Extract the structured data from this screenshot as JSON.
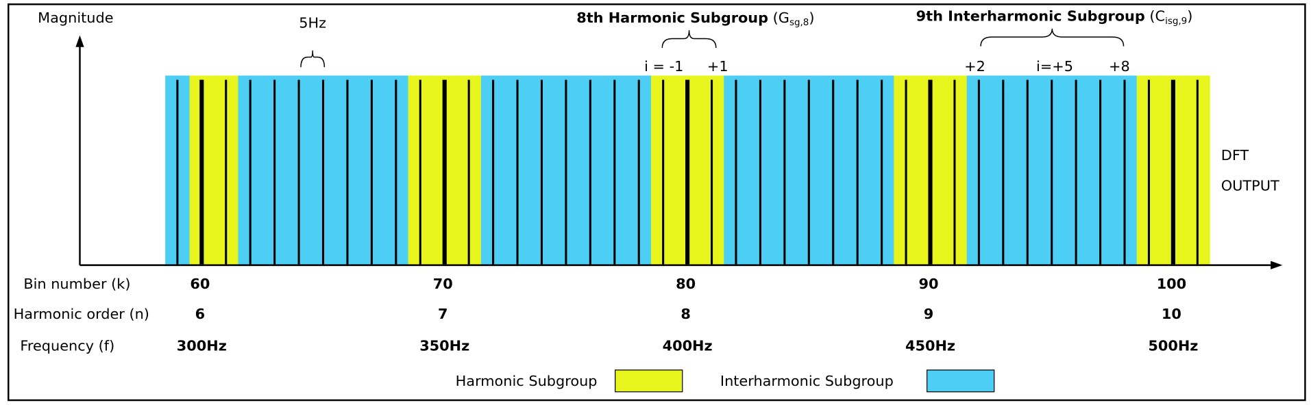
{
  "axis": {
    "y_label": "Magnitude",
    "row_labels": [
      "Bin number (k)",
      "Harmonic order (n)",
      "Frequency (f)"
    ]
  },
  "columns": [
    {
      "bin": "60",
      "order": "6",
      "frequency": "300Hz"
    },
    {
      "bin": "70",
      "order": "7",
      "frequency": "350Hz"
    },
    {
      "bin": "80",
      "order": "8",
      "frequency": "400Hz"
    },
    {
      "bin": "90",
      "order": "9",
      "frequency": "450Hz"
    },
    {
      "bin": "100",
      "order": "10",
      "frequency": "500Hz"
    }
  ],
  "annotations": {
    "bin_width": "5Hz",
    "harmonic_subgroup": {
      "title": "8th Harmonic Subgroup",
      "symbol": "(G",
      "subscript": "sg,8",
      "close": ")",
      "left": "i = -1",
      "right": "+1"
    },
    "interharmonic_subgroup": {
      "title": "9th Interharmonic Subgroup",
      "symbol": "(C",
      "subscript": "isg,9",
      "close": ")",
      "left": "+2",
      "middle": "i=+5",
      "right": "+8"
    }
  },
  "output_label": [
    "DFT",
    "OUTPUT"
  ],
  "legend": [
    {
      "label": "Harmonic Subgroup",
      "color": "#e8f51c"
    },
    {
      "label": "Interharmonic Subgroup",
      "color": "#4dcff5"
    }
  ]
}
